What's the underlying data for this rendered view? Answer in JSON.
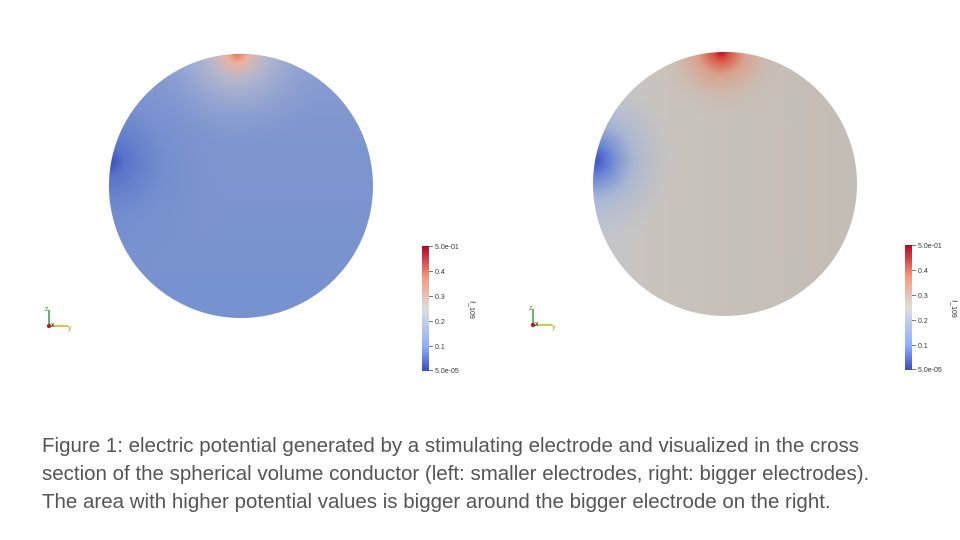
{
  "panels": [
    {
      "id": "left",
      "electrode_size": "smaller",
      "colorbar": {
        "title": "f_109",
        "max_label": "5.0e-01",
        "min_label": "5.0e-05",
        "ticks": [
          "0.4",
          "0.3",
          "0.2",
          "0.1"
        ]
      },
      "axes_triad": {
        "labels": [
          "z",
          "x",
          "y"
        ]
      }
    },
    {
      "id": "right",
      "electrode_size": "bigger",
      "colorbar": {
        "title": "f_109",
        "max_label": "5.0e-01",
        "min_label": "5.0e-05",
        "ticks": [
          "0.4",
          "0.3",
          "0.2",
          "0.1"
        ]
      },
      "axes_triad": {
        "labels": [
          "z",
          "x",
          "y"
        ]
      }
    }
  ],
  "colormap": {
    "low": "#3b4cc0",
    "mid": "#dddddd",
    "high": "#b40426"
  },
  "caption": {
    "lines": [
      "Figure 1: electric potential generated by a stimulating electrode and visualized in the cross",
      "section of the spherical volume conductor (left: smaller electrodes, right: bigger electrodes).",
      "The area with higher potential values is bigger around the bigger electrode on the right."
    ]
  }
}
